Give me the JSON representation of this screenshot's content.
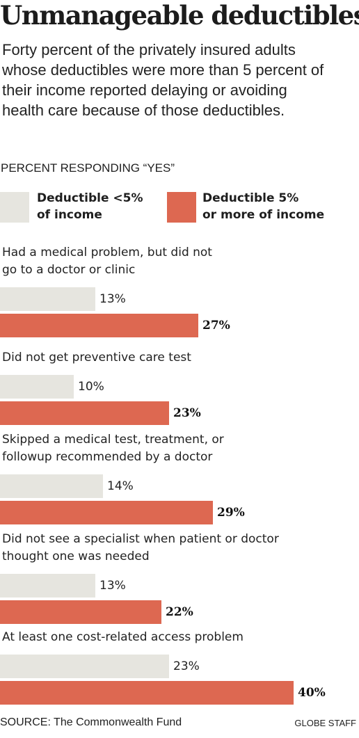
{
  "title": "Unmanageable deductibles",
  "subtitle": "Forty percent of the privately insured adults whose deductibles were more than 5 percent of their income reported delaying or avoiding health care because of those deductibles.",
  "legend": {
    "low": {
      "line1": "Deductible <5%",
      "line2": "of income"
    },
    "high": {
      "line1": "Deductible 5%",
      "line2": "or more of income"
    }
  },
  "colors": {
    "low": "#e6e5df",
    "high": "#dd6851"
  },
  "source": "SOURCE: The Commonwealth Fund",
  "credit": "GLOBE STAFF",
  "chart_data": {
    "type": "bar",
    "orientation": "horizontal",
    "ylabel": "PERCENT RESPONDING “YES”",
    "categories": [
      [
        "Had a medical problem, but did not",
        "go to a doctor or clinic"
      ],
      [
        "Did not get preventive care test"
      ],
      [
        "Skipped a medical test, treatment, or",
        "followup recommended by a doctor"
      ],
      [
        "Did not see a specialist when patient or doctor",
        "thought one was needed"
      ],
      [
        "At least one cost-related access problem"
      ]
    ],
    "series": [
      {
        "name": "Deductible <5% of income",
        "values": [
          13,
          10,
          14,
          13,
          23
        ],
        "labels": [
          "13%",
          "10%",
          "14%",
          "13%",
          "23%"
        ]
      },
      {
        "name": "Deductible 5% or more of income",
        "values": [
          27,
          23,
          29,
          22,
          40
        ],
        "labels": [
          "27%",
          "23%",
          "29%",
          "22%",
          "40%"
        ]
      }
    ],
    "xlim": [
      0,
      40
    ],
    "legend_position": "top",
    "grid": false
  }
}
